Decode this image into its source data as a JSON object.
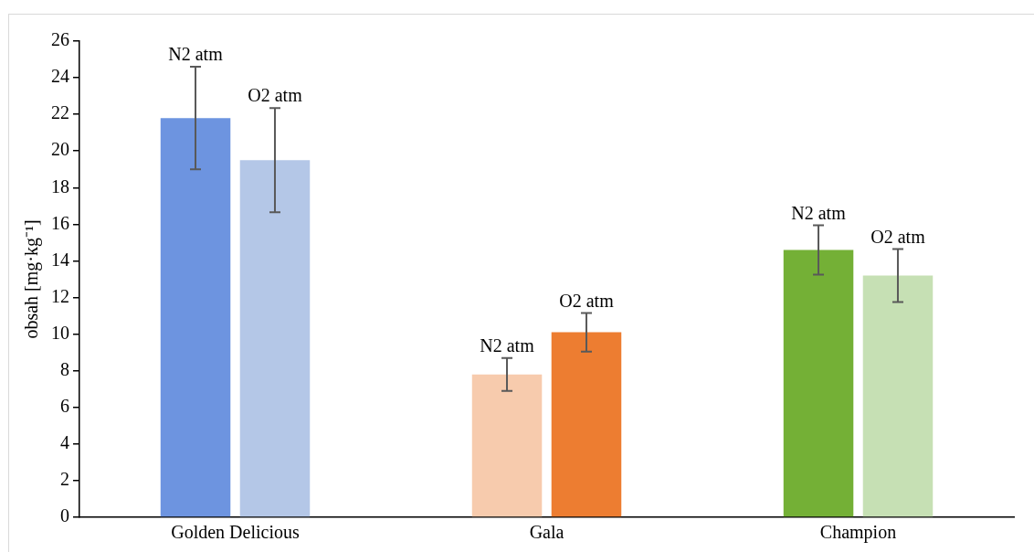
{
  "chart_data": {
    "type": "bar",
    "ylabel": "obsah [mg·kg⁻¹]",
    "categories": [
      "Golden Delicious",
      "Gala",
      "Champion"
    ],
    "series": [
      {
        "name": "N2 atm",
        "colors": [
          "#6d94e0",
          "#f7cbad",
          "#74b036"
        ],
        "values": [
          21.8,
          7.8,
          14.6
        ],
        "errors": [
          2.8,
          0.9,
          1.35
        ]
      },
      {
        "name": "O2 atm",
        "colors": [
          "#b4c7e7",
          "#ed7d31",
          "#c6e0b4"
        ],
        "values": [
          19.5,
          10.1,
          13.2
        ],
        "errors": [
          2.85,
          1.05,
          1.45
        ]
      }
    ],
    "ylim": [
      0,
      26
    ],
    "yticks": [
      0,
      2,
      4,
      6,
      8,
      10,
      12,
      14,
      16,
      18,
      20,
      22,
      24,
      26
    ],
    "grid": false,
    "legend": false
  }
}
